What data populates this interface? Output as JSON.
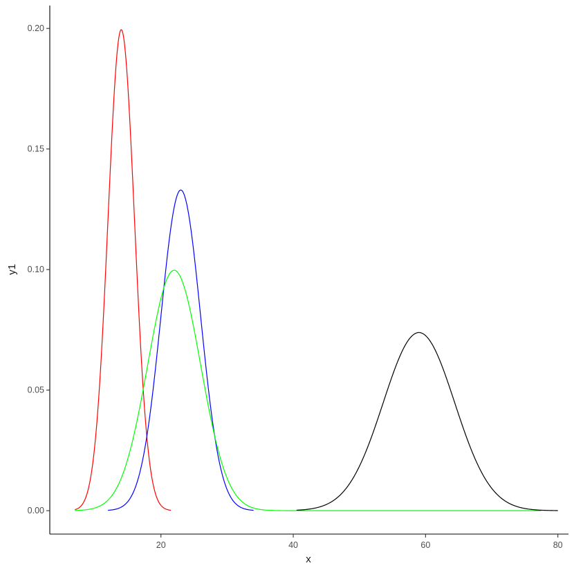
{
  "chart_data": {
    "type": "line",
    "xlabel": "x",
    "ylabel": "y1",
    "xlim": [
      3.2,
      81.6
    ],
    "ylim": [
      -0.0097,
      0.2095
    ],
    "x_ticks": [
      20,
      40,
      60,
      80
    ],
    "x_tick_labels": [
      "20",
      "40",
      "60",
      "80"
    ],
    "y_ticks": [
      0.0,
      0.05,
      0.1,
      0.15,
      0.2
    ],
    "y_tick_labels": [
      "0.00",
      "0.05",
      "0.10",
      "0.15",
      "0.20"
    ],
    "grid": false,
    "legend": "none",
    "series": [
      {
        "color": "#ff0000",
        "distribution": "normal",
        "mean": 14,
        "sd": 2,
        "x_range": [
          7,
          21.5
        ]
      },
      {
        "color": "#0000ff",
        "distribution": "normal",
        "mean": 23,
        "sd": 3,
        "x_range": [
          12,
          34
        ]
      },
      {
        "color": "#00ff00",
        "distribution": "normal",
        "mean": 22,
        "sd": 4,
        "x_range": [
          7,
          77.5
        ]
      },
      {
        "color": "#000000",
        "distribution": "normal",
        "mean": 59,
        "sd": 5.4,
        "x_range": [
          40.5,
          80
        ]
      }
    ]
  }
}
